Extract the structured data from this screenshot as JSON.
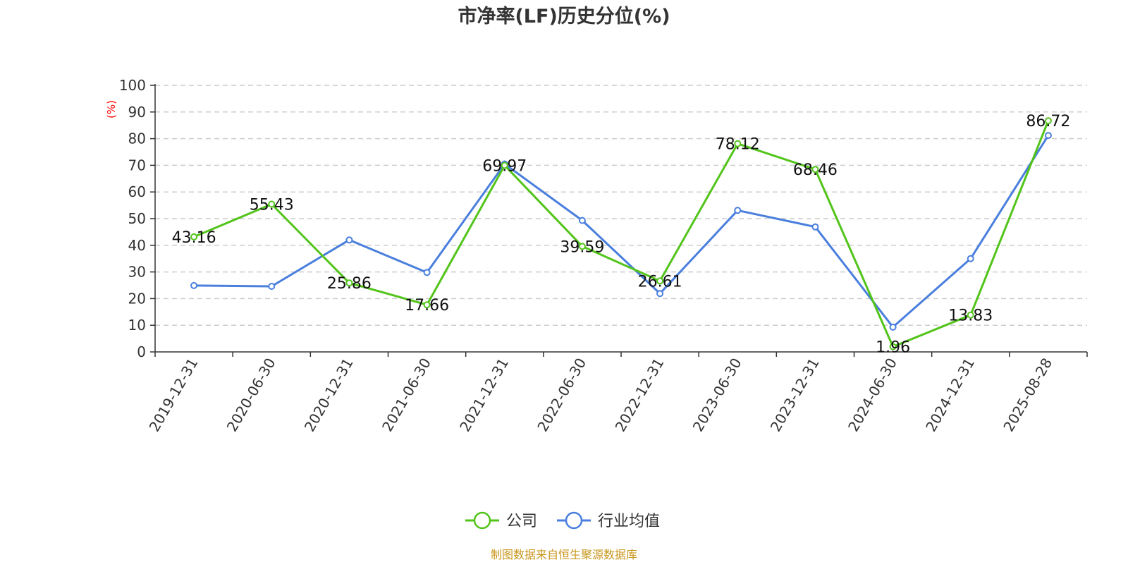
{
  "chart_data": {
    "type": "line",
    "title": "市净率(LF)历史分位(%)",
    "y_unit": "(%)",
    "categories": [
      "2019-12-31",
      "2020-06-30",
      "2020-12-31",
      "2021-06-30",
      "2021-12-31",
      "2022-06-30",
      "2022-12-31",
      "2023-06-30",
      "2023-12-31",
      "2024-06-30",
      "2024-12-31",
      "2025-08-28"
    ],
    "yticks": [
      "0",
      "10",
      "20",
      "30",
      "40",
      "50",
      "60",
      "70",
      "80",
      "90",
      "100"
    ],
    "ylim": [
      0,
      100
    ],
    "grid": true,
    "legend_position": "bottom-center",
    "series": [
      {
        "name": "公司",
        "color": "#52c41a",
        "values": [
          43.16,
          55.43,
          25.86,
          17.66,
          69.97,
          39.59,
          26.61,
          78.12,
          68.46,
          1.96,
          13.83,
          86.72
        ],
        "labels": [
          "43.16",
          "55.43",
          "25.86",
          "17.66",
          "69.97",
          "39.59",
          "26.61",
          "78.12",
          "68.46",
          "1.96",
          "13.83",
          "86.72"
        ]
      },
      {
        "name": "行业均值",
        "color": "#4a7fdd",
        "values": [
          24.9,
          24.6,
          42.0,
          29.8,
          70.5,
          49.3,
          21.9,
          53.1,
          46.9,
          9.3,
          35.0,
          81.2
        ]
      }
    ],
    "unit_color": "#ff0000",
    "source": "制图数据来自恒生聚源数据库",
    "source_color": "#c8961e"
  }
}
